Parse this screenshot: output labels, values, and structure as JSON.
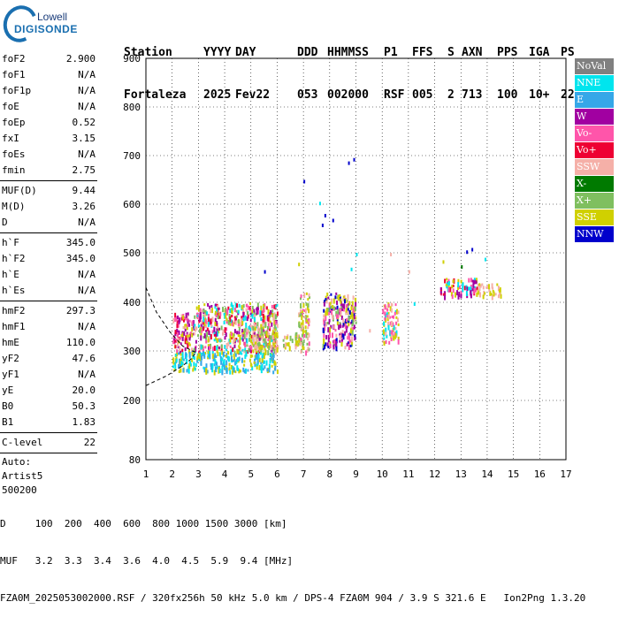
{
  "logo": {
    "line1": "Lowell",
    "line2": "DIGISONDE"
  },
  "header": {
    "labels": [
      "Station",
      "YYYY",
      "DAY",
      "DDD",
      "HHMMSS",
      "P1",
      "FFS",
      "S",
      "AXN",
      "PPS",
      "IGA",
      "PS"
    ],
    "values": [
      "Fortaleza",
      "2025",
      "Fev22",
      "053",
      "002000",
      "RSF",
      "005",
      "2",
      "713",
      "100",
      "10+",
      "22"
    ]
  },
  "params": {
    "group1": [
      {
        "label": "foF2",
        "value": "2.900"
      },
      {
        "label": "foF1",
        "value": "N/A"
      },
      {
        "label": "foF1p",
        "value": "N/A"
      },
      {
        "label": "foE",
        "value": "N/A"
      },
      {
        "label": "foEp",
        "value": "0.52"
      },
      {
        "label": "fxI",
        "value": "3.15"
      },
      {
        "label": "foEs",
        "value": "N/A"
      },
      {
        "label": "fmin",
        "value": "2.75"
      }
    ],
    "group2": [
      {
        "label": "MUF(D)",
        "value": "9.44"
      },
      {
        "label": "M(D)",
        "value": "3.26"
      },
      {
        "label": "D",
        "value": "N/A"
      }
    ],
    "group3": [
      {
        "label": "h`F",
        "value": "345.0"
      },
      {
        "label": "h`F2",
        "value": "345.0"
      },
      {
        "label": "h`E",
        "value": "N/A"
      },
      {
        "label": "h`Es",
        "value": "N/A"
      }
    ],
    "group4": [
      {
        "label": "hmF2",
        "value": "297.3"
      },
      {
        "label": "hmF1",
        "value": "N/A"
      },
      {
        "label": "hmE",
        "value": "110.0"
      },
      {
        "label": "yF2",
        "value": "47.6"
      },
      {
        "label": "yF1",
        "value": "N/A"
      },
      {
        "label": "yE",
        "value": "20.0"
      },
      {
        "label": "B0",
        "value": "50.3"
      },
      {
        "label": "B1",
        "value": "1.83"
      }
    ],
    "group5": [
      {
        "label": "C-level",
        "value": "22"
      }
    ],
    "auto": [
      "Auto:",
      "Artist5",
      "500200"
    ]
  },
  "legend": [
    {
      "label": "NoVal",
      "color": "#808080"
    },
    {
      "label": "NNE",
      "color": "#00e5ee"
    },
    {
      "label": "E",
      "color": "#35a7e8"
    },
    {
      "label": "W",
      "color": "#a100a1"
    },
    {
      "label": "Vo-",
      "color": "#ff55aa"
    },
    {
      "label": "Vo+",
      "color": "#ee0033"
    },
    {
      "label": "SSW",
      "color": "#f5b0a8"
    },
    {
      "label": "X-",
      "color": "#007a00"
    },
    {
      "label": "X+",
      "color": "#7fbf5f"
    },
    {
      "label": "SSE",
      "color": "#d0d000"
    },
    {
      "label": "NNW",
      "color": "#0000cc"
    }
  ],
  "footer": {
    "line1": "D     100  200  400  600  800 1000 1500 3000 [km]",
    "line2": "MUF   3.2  3.3  3.4  3.6  4.0  4.5  5.9  9.4 [MHz]",
    "line3": "FZA0M_2025053002000.RSF / 320fx256h 50 kHz 5.0 km / DPS-4 FZA0M 904 / 3.9 S 321.6 E   Ion2Png 1.3.20"
  },
  "chart_data": {
    "type": "scatter",
    "title": "",
    "xlabel": "",
    "ylabel": "",
    "xlim": [
      1,
      17
    ],
    "ylim": [
      80,
      900
    ],
    "xticks": [
      1,
      2,
      3,
      4,
      5,
      6,
      7,
      8,
      9,
      10,
      11,
      12,
      13,
      14,
      15,
      16,
      17
    ],
    "yticks": [
      80,
      200,
      300,
      400,
      500,
      600,
      700,
      800,
      900
    ],
    "grid": true,
    "legend_position": "right",
    "clusters": [
      {
        "x": [
          2.0,
          2.8
        ],
        "y": [
          300,
          380
        ],
        "colors": [
          "SSE",
          "Vo-",
          "SSW",
          "W",
          "Vo+"
        ]
      },
      {
        "x": [
          2.8,
          6.0
        ],
        "y": [
          300,
          400
        ],
        "colors": [
          "SSE",
          "Vo-",
          "SSW",
          "W",
          "Vo+",
          "X+",
          "NNE"
        ]
      },
      {
        "x": [
          2.0,
          6.0
        ],
        "y": [
          260,
          300
        ],
        "colors": [
          "NNE",
          "E",
          "SSE"
        ]
      },
      {
        "x": [
          5.0,
          6.0
        ],
        "y": [
          300,
          360
        ],
        "colors": [
          "SSW",
          "SSE",
          "X+"
        ]
      },
      {
        "x": [
          6.2,
          7.0
        ],
        "y": [
          310,
          340
        ],
        "colors": [
          "SSE",
          "SSW",
          "X+"
        ]
      },
      {
        "x": [
          6.8,
          7.2
        ],
        "y": [
          300,
          420
        ],
        "colors": [
          "SSE",
          "SSW",
          "Vo-",
          "X+"
        ]
      },
      {
        "x": [
          7.7,
          9.0
        ],
        "y": [
          310,
          420
        ],
        "colors": [
          "SSE",
          "SSW",
          "Vo-",
          "W",
          "X+",
          "NNW"
        ]
      },
      {
        "x": [
          10.0,
          10.6
        ],
        "y": [
          320,
          400
        ],
        "colors": [
          "SSW",
          "Vo-",
          "NNE",
          "SSE"
        ]
      },
      {
        "x": [
          12.2,
          13.6
        ],
        "y": [
          415,
          450
        ],
        "colors": [
          "Vo+",
          "W",
          "NNE",
          "Vo-",
          "SSE"
        ]
      },
      {
        "x": [
          13.6,
          14.5
        ],
        "y": [
          415,
          440
        ],
        "colors": [
          "SSE",
          "SSW"
        ]
      }
    ],
    "points": [
      {
        "x": 7.0,
        "y": 650,
        "color": "NNW"
      },
      {
        "x": 7.6,
        "y": 605,
        "color": "NNE"
      },
      {
        "x": 7.7,
        "y": 560,
        "color": "NNW"
      },
      {
        "x": 7.8,
        "y": 580,
        "color": "NNW"
      },
      {
        "x": 8.1,
        "y": 570,
        "color": "NNW"
      },
      {
        "x": 8.7,
        "y": 688,
        "color": "NNW"
      },
      {
        "x": 8.9,
        "y": 695,
        "color": "NNW"
      },
      {
        "x": 5.5,
        "y": 465,
        "color": "NNW"
      },
      {
        "x": 6.8,
        "y": 480,
        "color": "SSE"
      },
      {
        "x": 8.8,
        "y": 470,
        "color": "NNE"
      },
      {
        "x": 9.0,
        "y": 500,
        "color": "NNE"
      },
      {
        "x": 10.3,
        "y": 500,
        "color": "SSW"
      },
      {
        "x": 11.0,
        "y": 465,
        "color": "SSW"
      },
      {
        "x": 12.3,
        "y": 485,
        "color": "SSE"
      },
      {
        "x": 13.0,
        "y": 475,
        "color": "X-"
      },
      {
        "x": 13.2,
        "y": 505,
        "color": "NNW"
      },
      {
        "x": 13.4,
        "y": 510,
        "color": "NNW"
      },
      {
        "x": 13.9,
        "y": 490,
        "color": "NNE"
      },
      {
        "x": 11.2,
        "y": 400,
        "color": "NNE"
      },
      {
        "x": 10.4,
        "y": 330,
        "color": "SSE"
      },
      {
        "x": 9.5,
        "y": 345,
        "color": "SSW"
      }
    ],
    "profile_curve": {
      "x": [
        1.0,
        1.8,
        2.4,
        2.75,
        2.9
      ],
      "y": [
        230,
        250,
        270,
        285,
        297
      ]
    },
    "profile_upper": {
      "x": [
        1.0,
        1.4,
        1.9,
        2.4,
        2.9
      ],
      "y": [
        430,
        380,
        340,
        310,
        297
      ]
    }
  }
}
